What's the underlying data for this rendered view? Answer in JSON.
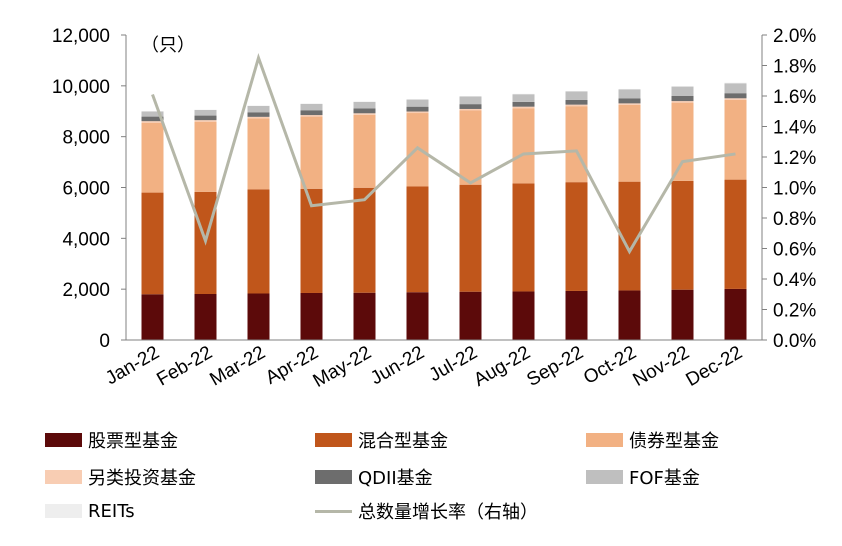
{
  "chart_data": {
    "type": "bar",
    "stacked": true,
    "categories": [
      "Jan-22",
      "Feb-22",
      "Mar-22",
      "Apr-22",
      "May-22",
      "Jun-22",
      "Jul-22",
      "Aug-22",
      "Sep-22",
      "Oct-22",
      "Nov-22",
      "Dec-22"
    ],
    "unit_label": "（只）",
    "ylim": [
      0,
      12000
    ],
    "yticks": [
      "0",
      "2,000",
      "4,000",
      "6,000",
      "8,000",
      "10,000",
      "12,000"
    ],
    "y2lim": [
      0,
      0.02
    ],
    "y2ticks": [
      "0.0%",
      "0.2%",
      "0.4%",
      "0.6%",
      "0.8%",
      "1.0%",
      "1.2%",
      "1.4%",
      "1.6%",
      "1.8%",
      "2.0%"
    ],
    "series": [
      {
        "name": "股票型基金",
        "color": "#5c0a0a",
        "values": [
          1800,
          1810,
          1830,
          1850,
          1860,
          1880,
          1900,
          1910,
          1930,
          1950,
          1980,
          2010
        ]
      },
      {
        "name": "混合型基金",
        "color": "#c0561b",
        "values": [
          4000,
          4020,
          4100,
          4100,
          4130,
          4160,
          4210,
          4250,
          4280,
          4280,
          4280,
          4300
        ]
      },
      {
        "name": "债券型基金",
        "color": "#f2b183",
        "values": [
          2750,
          2760,
          2790,
          2840,
          2870,
          2890,
          2920,
          2960,
          2990,
          3020,
          3080,
          3140
        ]
      },
      {
        "name": "另类投资基金",
        "color": "#f8cdb3",
        "values": [
          60,
          60,
          60,
          60,
          60,
          60,
          60,
          60,
          60,
          60,
          60,
          60
        ]
      },
      {
        "name": "QDII基金",
        "color": "#6d6d6d",
        "values": [
          180,
          180,
          180,
          190,
          190,
          190,
          190,
          190,
          190,
          200,
          200,
          200
        ]
      },
      {
        "name": "FOF基金",
        "color": "#bfbfbf",
        "values": [
          200,
          220,
          250,
          250,
          260,
          280,
          300,
          300,
          330,
          350,
          370,
          390
        ]
      },
      {
        "name": "REITs",
        "color": "#eeeeee",
        "values": [
          10,
          12,
          12,
          12,
          12,
          12,
          13,
          14,
          16,
          17,
          20,
          24
        ]
      }
    ],
    "line": {
      "name": "总数量增长率（右轴）",
      "axis": "right",
      "color": "#b5b7a8",
      "values": [
        0.0161,
        0.0065,
        0.0185,
        0.0088,
        0.0092,
        0.0126,
        0.0103,
        0.0122,
        0.0124,
        0.0058,
        0.0117,
        0.0122
      ]
    }
  }
}
